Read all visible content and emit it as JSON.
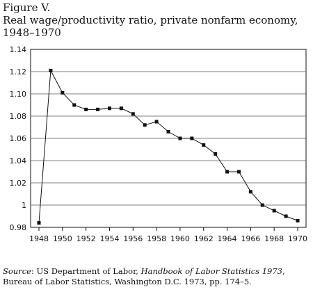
{
  "figure_label": "Figure V.",
  "title_lines": [
    "Real wage/productivity ratio, private nonfarm economy,",
    "1948–1970"
  ],
  "source": {
    "label": "Source",
    "before_title": ": US Department of Labor, ",
    "title": "Handbook of Labor Statistics 1973",
    "after_title": ", Bureau of Labor Statistics, Washington D.C. 1973, pp. 174–5."
  },
  "chart_data": {
    "type": "line",
    "title": "Real wage/productivity ratio, private nonfarm economy, 1948–1970",
    "xlabel": "",
    "ylabel": "",
    "xlim": [
      1948,
      1970
    ],
    "ylim": [
      0.98,
      1.14
    ],
    "xticks": [
      1948,
      1950,
      1952,
      1954,
      1956,
      1958,
      1960,
      1962,
      1964,
      1966,
      1968,
      1970
    ],
    "xtick_labels": [
      "1948",
      "1950",
      "1952",
      "1954",
      "1956",
      "1958",
      "1960",
      "1962",
      "1964",
      "1966",
      "1968",
      "1970"
    ],
    "yticks": [
      0.98,
      1.0,
      1.02,
      1.04,
      1.06,
      1.08,
      1.1,
      1.12,
      1.14
    ],
    "ytick_labels": [
      "0.98",
      "1",
      "1.02",
      "1.04",
      "1.06",
      "1.08",
      "1.10",
      "1.12",
      "1.14"
    ],
    "grid": "horizontal",
    "marker": "square",
    "series": [
      {
        "x": [
          1948,
          1949,
          1950,
          1951,
          1952,
          1953,
          1954,
          1955,
          1956,
          1957,
          1958,
          1959,
          1960,
          1961,
          1962,
          1963,
          1964,
          1965,
          1966,
          1967,
          1968,
          1969,
          1970
        ],
        "values": [
          0.984,
          1.121,
          1.101,
          1.09,
          1.086,
          1.086,
          1.087,
          1.087,
          1.082,
          1.072,
          1.075,
          1.066,
          1.06,
          1.06,
          1.054,
          1.046,
          1.03,
          1.03,
          1.012,
          1.0,
          0.995,
          0.99,
          0.986
        ]
      }
    ]
  }
}
